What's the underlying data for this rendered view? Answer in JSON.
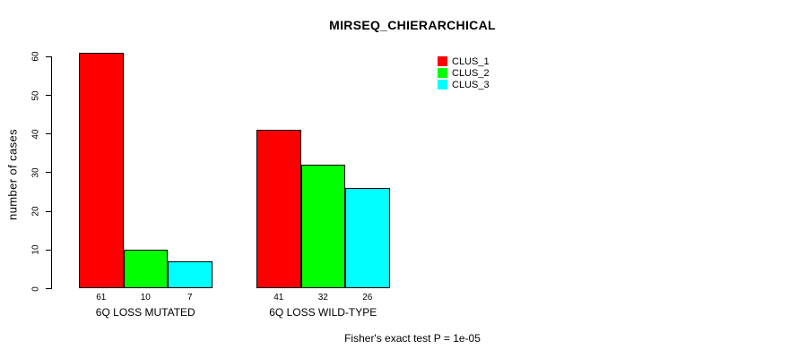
{
  "chart_data": {
    "type": "bar",
    "title": "MIRSEQ_CHIERARCHICAL",
    "ylabel": "number of cases",
    "xlabel": "",
    "ylim": [
      0,
      60
    ],
    "yticks": [
      0,
      10,
      20,
      30,
      40,
      50,
      60
    ],
    "categories": [
      "6Q LOSS MUTATED",
      "6Q LOSS WILD-TYPE"
    ],
    "series": [
      {
        "name": "CLUS_1",
        "color": "#ff0000",
        "values": [
          61,
          41
        ]
      },
      {
        "name": "CLUS_2",
        "color": "#00ff00",
        "values": [
          10,
          32
        ]
      },
      {
        "name": "CLUS_3",
        "color": "#00ffff",
        "values": [
          7,
          26
        ]
      }
    ],
    "bar_value_labels": [
      [
        "61",
        "10",
        "7"
      ],
      [
        "41",
        "32",
        "26"
      ]
    ],
    "legend_position": "top-right",
    "grid": false,
    "bar_border_color": "#000000",
    "annotation": "Fisher's exact test P = 1e-05"
  }
}
